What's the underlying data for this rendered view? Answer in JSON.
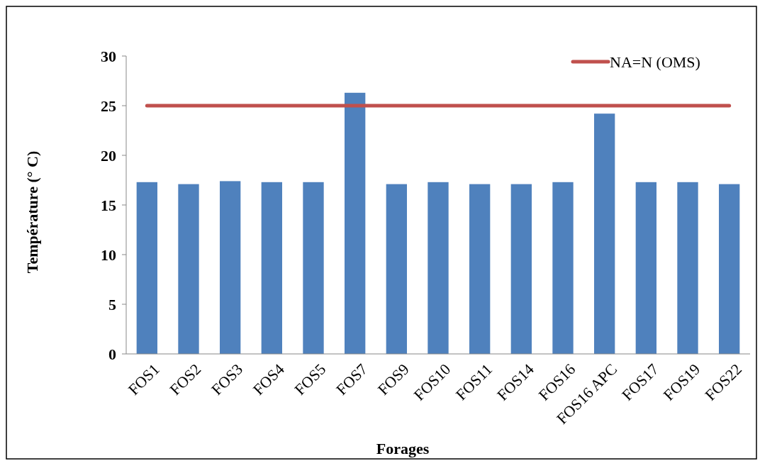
{
  "chart_data": {
    "type": "bar",
    "xlabel": "Forages",
    "ylabel": "Température (° C)",
    "categories": [
      "FOS1",
      "FOS2",
      "FOS3",
      "FOS4",
      "FOS5",
      "FOS7",
      "FOS9",
      "FOS10",
      "FOS11",
      "FOS14",
      "FOS16",
      "FOS16 APC",
      "FOS17",
      "FOS19",
      "FOS22"
    ],
    "series": [
      {
        "color": "#4f81bd",
        "values": [
          17.3,
          17.1,
          17.4,
          17.3,
          17.3,
          26.3,
          17.1,
          17.3,
          17.1,
          17.1,
          17.3,
          24.2,
          17.3,
          17.3,
          17.1
        ]
      },
      {
        "type": "line",
        "name": "NA=N (OMS)",
        "color": "#c0504d",
        "values": [
          25,
          25,
          25,
          25,
          25,
          25,
          25,
          25,
          25,
          25,
          25,
          25,
          25,
          25,
          25
        ]
      }
    ],
    "ylim": [
      0,
      30
    ],
    "yticks": [
      0,
      5,
      10,
      15,
      20,
      25,
      30
    ],
    "grid": false,
    "legend": "top right",
    "marker": "none"
  }
}
